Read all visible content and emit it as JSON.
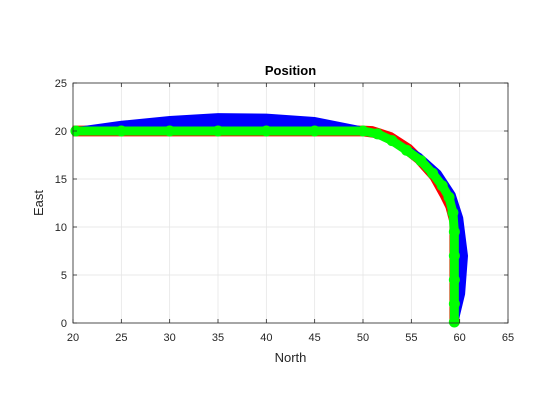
{
  "chart_data": {
    "type": "line",
    "title": "Position",
    "xlabel": "North",
    "ylabel": "East",
    "xlim": [
      20,
      65
    ],
    "ylim": [
      0,
      25
    ],
    "xticks": [
      20,
      25,
      30,
      35,
      40,
      45,
      50,
      55,
      60,
      65
    ],
    "yticks": [
      0,
      5,
      10,
      15,
      20,
      25
    ],
    "grid": true,
    "legend": "none",
    "series": [
      {
        "color": "#ff0000",
        "style": "band",
        "upper": [
          [
            20,
            20.5
          ],
          [
            30,
            20.5
          ],
          [
            40,
            20.5
          ],
          [
            50,
            20.5
          ],
          [
            51,
            20.45
          ],
          [
            53,
            19.8
          ],
          [
            55,
            18.5
          ],
          [
            56.5,
            17.0
          ],
          [
            58,
            15.0
          ],
          [
            59,
            13.0
          ],
          [
            59.5,
            11.0
          ],
          [
            59.8,
            8.0
          ],
          [
            59.9,
            4.0
          ],
          [
            59.9,
            0
          ]
        ],
        "lower": [
          [
            20,
            19.5
          ],
          [
            30,
            19.5
          ],
          [
            40,
            19.5
          ],
          [
            50,
            19.5
          ],
          [
            51.5,
            19.3
          ],
          [
            53.5,
            18.3
          ],
          [
            55.5,
            16.7
          ],
          [
            57,
            15.0
          ],
          [
            58,
            13.2
          ],
          [
            58.6,
            12.0
          ],
          [
            59,
            10.5
          ],
          [
            59,
            5.0
          ],
          [
            59,
            0
          ]
        ]
      },
      {
        "color": "#0000ff",
        "style": "band",
        "upper": [
          [
            20,
            20.3
          ],
          [
            25,
            21.0
          ],
          [
            30,
            21.5
          ],
          [
            35,
            21.8
          ],
          [
            40,
            21.75
          ],
          [
            45,
            21.4
          ],
          [
            50,
            20.4
          ],
          [
            53,
            19.4
          ],
          [
            56,
            17.6
          ],
          [
            58,
            15.8
          ],
          [
            59.5,
            13.5
          ],
          [
            60.3,
            11.0
          ],
          [
            60.8,
            7.0
          ],
          [
            60.5,
            3.0
          ],
          [
            59.9,
            0.5
          ]
        ],
        "lower": [
          [
            20,
            19.6
          ],
          [
            30,
            19.9
          ],
          [
            40,
            19.9
          ],
          [
            50,
            19.7
          ],
          [
            53,
            18.8
          ],
          [
            55.5,
            17.1
          ],
          [
            57.5,
            15.3
          ],
          [
            58.8,
            13.5
          ],
          [
            59.4,
            11.0
          ],
          [
            59.6,
            6.0
          ],
          [
            59.4,
            2.0
          ],
          [
            59.3,
            0.3
          ]
        ]
      },
      {
        "color": "#00ff00",
        "style": "line-with-markers",
        "points": [
          [
            20.3,
            20.0
          ],
          [
            25,
            20.0
          ],
          [
            30,
            20.0
          ],
          [
            35,
            20.0
          ],
          [
            40,
            20.0
          ],
          [
            45,
            20.0
          ],
          [
            50,
            20.0
          ],
          [
            51.5,
            19.7
          ],
          [
            53,
            19.0
          ],
          [
            54.5,
            18.0
          ],
          [
            56,
            16.9
          ],
          [
            57.2,
            15.6
          ],
          [
            58.2,
            14.3
          ],
          [
            58.9,
            13.1
          ],
          [
            59.3,
            11.5
          ],
          [
            59.45,
            9.5
          ],
          [
            59.45,
            7.0
          ],
          [
            59.45,
            4.5
          ],
          [
            59.45,
            2.0
          ],
          [
            59.45,
            0.1
          ]
        ]
      }
    ]
  }
}
